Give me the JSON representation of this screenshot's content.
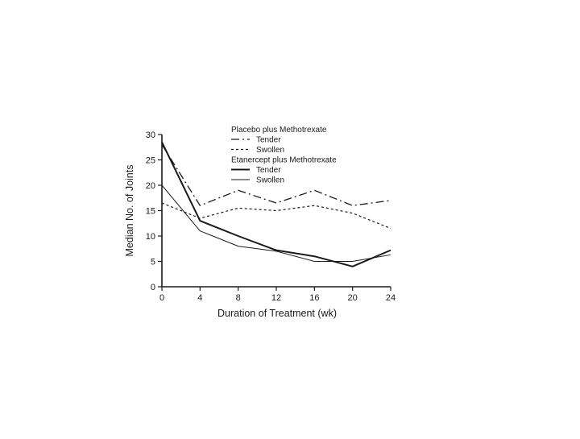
{
  "chart_data": {
    "type": "line",
    "xlabel": "Duration of Treatment (wk)",
    "ylabel": "Median No. of Joints",
    "xlim": [
      0,
      24
    ],
    "ylim": [
      0,
      30
    ],
    "xticks": [
      0,
      4,
      8,
      12,
      16,
      20,
      24
    ],
    "yticks": [
      0,
      5,
      10,
      15,
      20,
      25,
      30
    ],
    "grid": false,
    "legend_position": "top-right",
    "legend_groups": [
      {
        "title": "Placebo plus Methotrexate",
        "entries": [
          "Tender",
          "Swollen"
        ]
      },
      {
        "title": "Etanercept plus Methotrexate",
        "entries": [
          "Tender",
          "Swollen"
        ]
      }
    ],
    "x": [
      0,
      4,
      8,
      12,
      16,
      20,
      24
    ],
    "series": [
      {
        "group": "Placebo plus Methotrexate",
        "name": "Tender",
        "style": "dash-dot",
        "color": "#1a1a1a",
        "values": [
          28,
          16,
          19,
          16.5,
          19,
          16,
          17
        ]
      },
      {
        "group": "Placebo plus Methotrexate",
        "name": "Swollen",
        "style": "dotted",
        "color": "#1a1a1a",
        "values": [
          16.5,
          13.5,
          15.5,
          15,
          16,
          14.5,
          11.5
        ]
      },
      {
        "group": "Etanercept plus Methotrexate",
        "name": "Tender",
        "style": "solid-thick",
        "color": "#1a1a1a",
        "values": [
          28.5,
          13,
          10,
          7.2,
          6,
          4,
          7.2
        ]
      },
      {
        "group": "Etanercept plus Methotrexate",
        "name": "Swollen",
        "style": "solid-thin",
        "color": "#1a1a1a",
        "values": [
          20,
          11,
          8,
          7,
          5,
          5,
          6.3
        ]
      }
    ]
  }
}
